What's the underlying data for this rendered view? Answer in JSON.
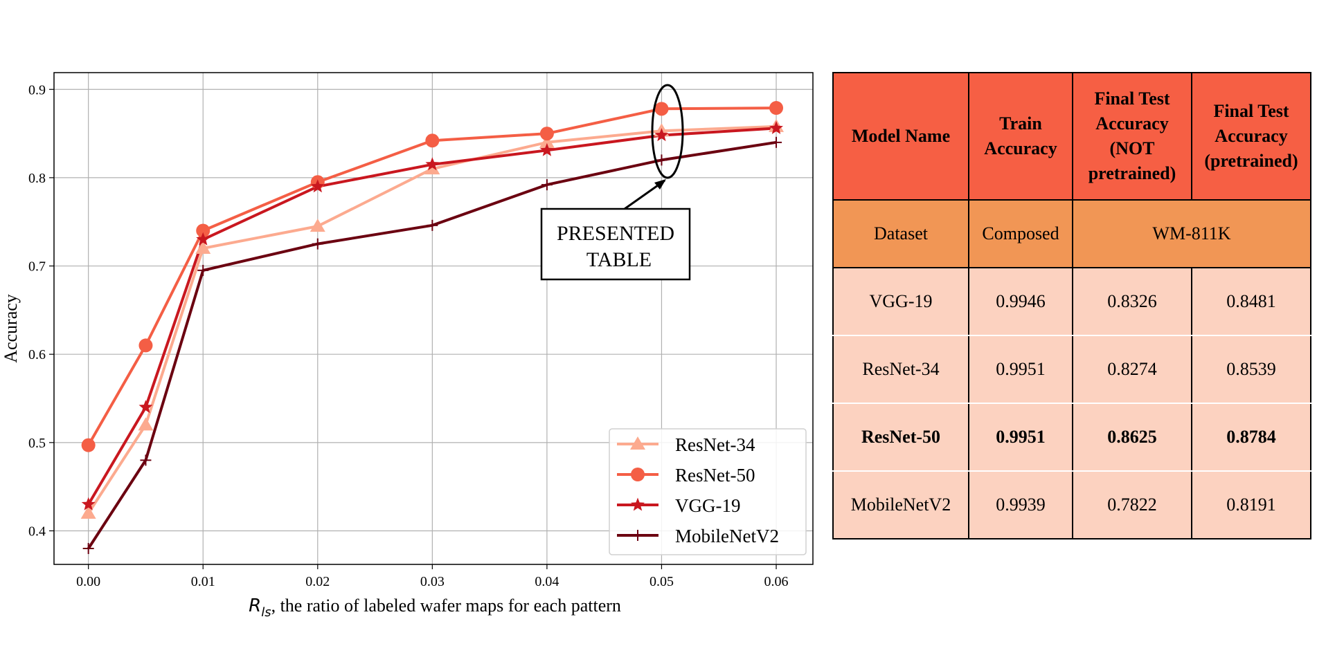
{
  "chart_data": {
    "type": "line",
    "xlabel_symbol": "R",
    "xlabel_subscript": "ls",
    "xlabel": ", the ratio of labeled wafer maps for each pattern",
    "ylabel": "Accuracy",
    "xlim": [
      -0.003,
      0.0632
    ],
    "ylim": [
      0.362,
      0.919
    ],
    "xticks": [
      "0.00",
      "0.01",
      "0.02",
      "0.03",
      "0.04",
      "0.05",
      "0.06"
    ],
    "yticks": [
      "0.4",
      "0.5",
      "0.6",
      "0.7",
      "0.8",
      "0.9"
    ],
    "grid": true,
    "legend_position": "bottom-right",
    "x": [
      0.0,
      0.005,
      0.01,
      0.02,
      0.03,
      0.04,
      0.05,
      0.06
    ],
    "series": [
      {
        "name": "ResNet-34",
        "marker": "triangle",
        "color": "#fcaa8f",
        "values": [
          0.42,
          0.52,
          0.72,
          0.745,
          0.81,
          0.84,
          0.853,
          0.858
        ]
      },
      {
        "name": "ResNet-50",
        "marker": "circle",
        "color": "#f45e45",
        "values": [
          0.497,
          0.61,
          0.74,
          0.795,
          0.842,
          0.85,
          0.878,
          0.879
        ]
      },
      {
        "name": "VGG-19",
        "marker": "star",
        "color": "#c9171f",
        "values": [
          0.43,
          0.54,
          0.73,
          0.79,
          0.815,
          0.831,
          0.848,
          0.856
        ]
      },
      {
        "name": "MobileNetV2",
        "marker": "plus",
        "color": "#6b0010",
        "values": [
          0.38,
          0.48,
          0.695,
          0.725,
          0.746,
          0.792,
          0.82,
          0.84
        ]
      }
    ],
    "annotation": {
      "line1": "PRESENTED",
      "line2": "TABLE",
      "target_x": 0.05
    }
  },
  "table": {
    "headers": [
      "Model Name",
      "Train Accuracy",
      "Final Test Accuracy (NOT pretrained)",
      "Final Test Accuracy (pretrained)"
    ],
    "header_lines": [
      [
        "Model Name"
      ],
      [
        "Train",
        "Accuracy"
      ],
      [
        "Final Test",
        "Accuracy",
        "(NOT",
        "pretrained)"
      ],
      [
        "Final Test",
        "Accuracy",
        "(pretrained)"
      ]
    ],
    "subheader": {
      "label": "Dataset",
      "train": "Composed",
      "test": "WM-811K"
    },
    "rows": [
      {
        "model": "VGG-19",
        "train": "0.9946",
        "test_np": "0.8326",
        "test_p": "0.8481"
      },
      {
        "model": "ResNet-34",
        "train": "0.9951",
        "test_np": "0.8274",
        "test_p": "0.8539"
      },
      {
        "model": "ResNet-50",
        "train": "0.9951",
        "test_np": "0.8625",
        "test_p": "0.8784"
      },
      {
        "model": "MobileNetV2",
        "train": "0.9939",
        "test_np": "0.7822",
        "test_p": "0.8191"
      }
    ],
    "bold_row": "ResNet-50",
    "colors": {
      "header": "#f65f44",
      "subheader": "#f19655",
      "body": "#fcd2c0"
    }
  }
}
